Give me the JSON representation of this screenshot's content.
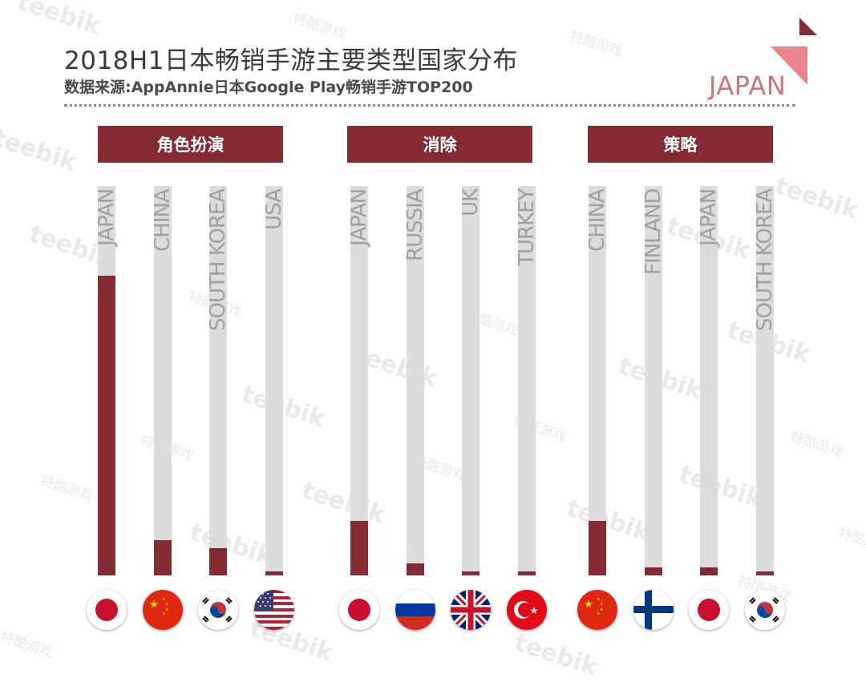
{
  "title": "2018H1日本畅销手游主要类型国家分布",
  "subtitle": "数据来源:AppAnnie日本Google Play畅销手游TOP200",
  "logo": {
    "text": "JAPAN"
  },
  "watermarks": {
    "en": "teebik",
    "cn": "特酷游戏"
  },
  "colors": {
    "bar": "#832a32",
    "track": "#dcdcdc",
    "header": "#832a32",
    "logo": "#c9777a"
  },
  "chart_data": [
    {
      "type": "bar",
      "title": "角色扮演",
      "categories": [
        "JAPAN",
        "CHINA",
        "SOUTH KOREA",
        "USA"
      ],
      "flags": [
        "japan-flag-icon",
        "china-flag-icon",
        "south-korea-flag-icon",
        "usa-flag-icon"
      ],
      "values": [
        77,
        9,
        7,
        1
      ],
      "ylim": [
        0,
        100
      ],
      "xlabel": "",
      "ylabel": ""
    },
    {
      "type": "bar",
      "title": "消除",
      "categories": [
        "JAPAN",
        "RUSSIA",
        "UK",
        "TURKEY"
      ],
      "flags": [
        "japan-flag-icon",
        "russia-flag-icon",
        "uk-flag-icon",
        "turkey-flag-icon"
      ],
      "values": [
        14,
        3,
        1,
        1
      ],
      "ylim": [
        0,
        100
      ],
      "xlabel": "",
      "ylabel": ""
    },
    {
      "type": "bar",
      "title": "策略",
      "categories": [
        "CHINA",
        "FINLAND",
        "JAPAN",
        "SOUTH KOREA"
      ],
      "flags": [
        "china-flag-icon",
        "finland-flag-icon",
        "japan-flag-icon",
        "south-korea-flag-icon"
      ],
      "values": [
        14,
        2,
        2,
        1
      ],
      "ylim": [
        0,
        100
      ],
      "xlabel": "",
      "ylabel": ""
    }
  ]
}
